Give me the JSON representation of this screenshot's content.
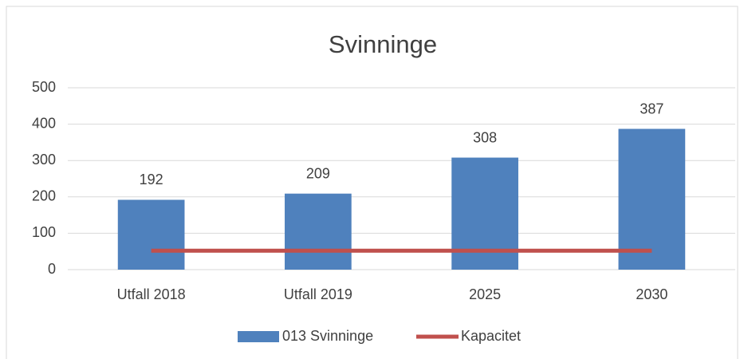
{
  "chart_data": {
    "type": "bar",
    "title": "Svinninge",
    "categories": [
      "Utfall 2018",
      "Utfall 2019",
      "2025",
      "2030"
    ],
    "series": [
      {
        "name": "013 Svinninge",
        "type": "bar",
        "color": "#4f81bd",
        "values": [
          192,
          209,
          308,
          387
        ]
      },
      {
        "name": "Kapacitet",
        "type": "line",
        "color": "#c0504d",
        "values": [
          52,
          52,
          52,
          52
        ]
      }
    ],
    "ylim": [
      0,
      500
    ],
    "yticks": [
      0,
      100,
      200,
      300,
      400,
      500
    ],
    "grid": true,
    "legend": "bottom"
  }
}
